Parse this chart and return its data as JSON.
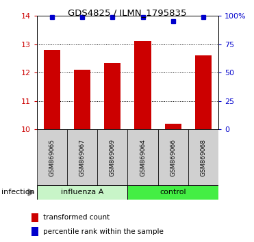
{
  "title": "GDS4825 / ILMN_1795835",
  "samples": [
    "GSM869065",
    "GSM869067",
    "GSM869069",
    "GSM869064",
    "GSM869066",
    "GSM869068"
  ],
  "red_values": [
    12.8,
    12.1,
    12.35,
    13.1,
    10.2,
    12.6
  ],
  "blue_values": [
    99,
    99,
    99,
    99,
    95,
    99
  ],
  "ylim_left": [
    10,
    14
  ],
  "ylim_right": [
    0,
    100
  ],
  "yticks_left": [
    10,
    11,
    12,
    13,
    14
  ],
  "yticks_right": [
    0,
    25,
    50,
    75,
    100
  ],
  "ytick_labels_right": [
    "0",
    "25",
    "50",
    "75",
    "100%"
  ],
  "group_labels": [
    "influenza A",
    "control"
  ],
  "influenza_color": "#c8f5c8",
  "control_color": "#44ee44",
  "bar_color": "#cc0000",
  "dot_color": "#0000cc",
  "infection_label": "infection",
  "legend_red": "transformed count",
  "legend_blue": "percentile rank within the sample",
  "bar_width": 0.55,
  "base_value": 10,
  "grid_lines": [
    11,
    12,
    13
  ]
}
